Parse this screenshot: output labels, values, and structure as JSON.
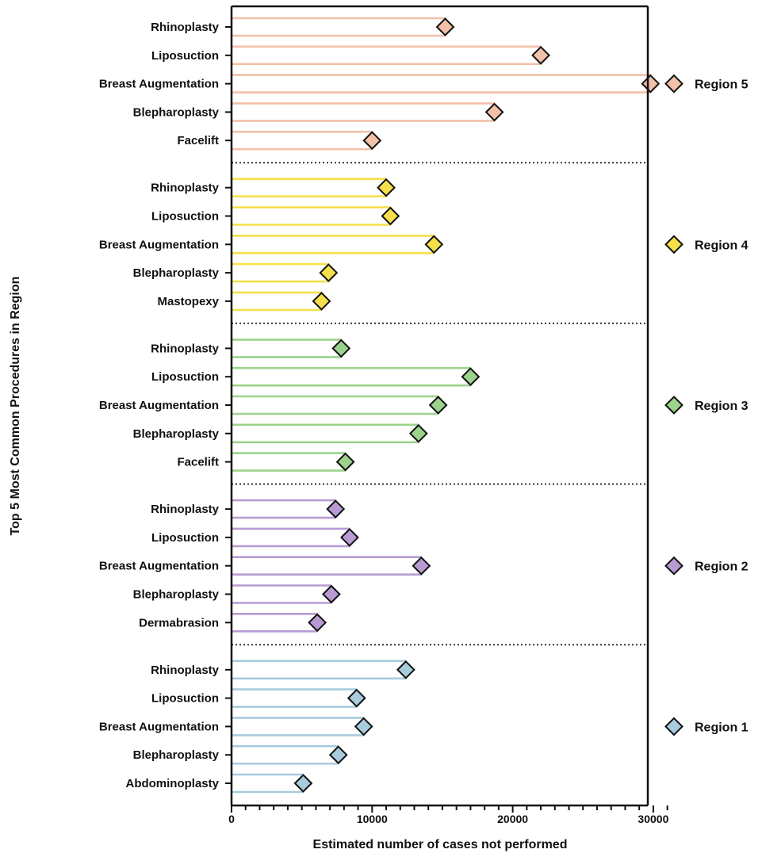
{
  "chart_data": {
    "type": "lollipop",
    "xlabel": "Estimated number of cases not performed",
    "ylabel": "Top 5 Most Common Procedures in Region",
    "xlim": [
      0,
      31000
    ],
    "xticks": [
      0,
      10000,
      20000,
      30000
    ],
    "xtick_labels": [
      "0",
      "10000",
      "20000",
      "30000"
    ],
    "minor_tick_step": 1000,
    "legend_position": "right",
    "regions": [
      {
        "name": "Region 5",
        "color": "#F2C1A8",
        "items": [
          {
            "label": "Rhinoplasty",
            "value": 15200
          },
          {
            "label": "Liposuction",
            "value": 22000
          },
          {
            "label": "Breast Augmentation",
            "value": 29800
          },
          {
            "label": "Blepharoplasty",
            "value": 18700
          },
          {
            "label": "Facelift",
            "value": 10000
          }
        ]
      },
      {
        "name": "Region 4",
        "color": "#F5E04A",
        "items": [
          {
            "label": "Rhinoplasty",
            "value": 11000
          },
          {
            "label": "Liposuction",
            "value": 11300
          },
          {
            "label": "Breast Augmentation",
            "value": 14400
          },
          {
            "label": "Blepharoplasty",
            "value": 6900
          },
          {
            "label": "Mastopexy",
            "value": 6400
          }
        ]
      },
      {
        "name": "Region 3",
        "color": "#9CD38B",
        "items": [
          {
            "label": "Rhinoplasty",
            "value": 7800
          },
          {
            "label": "Liposuction",
            "value": 17000
          },
          {
            "label": "Breast Augmentation",
            "value": 14700
          },
          {
            "label": "Blepharoplasty",
            "value": 13300
          },
          {
            "label": "Facelift",
            "value": 8100
          }
        ]
      },
      {
        "name": "Region 2",
        "color": "#B89BD3",
        "items": [
          {
            "label": "Rhinoplasty",
            "value": 7400
          },
          {
            "label": "Liposuction",
            "value": 8400
          },
          {
            "label": "Breast Augmentation",
            "value": 13500
          },
          {
            "label": "Blepharoplasty",
            "value": 7100
          },
          {
            "label": "Dermabrasion",
            "value": 6100
          }
        ]
      },
      {
        "name": "Region 1",
        "color": "#A8CBDD",
        "items": [
          {
            "label": "Rhinoplasty",
            "value": 12400
          },
          {
            "label": "Liposuction",
            "value": 8900
          },
          {
            "label": "Breast Augmentation",
            "value": 9400
          },
          {
            "label": "Blepharoplasty",
            "value": 7600
          },
          {
            "label": "Abdominoplasty",
            "value": 5100
          }
        ]
      }
    ]
  }
}
